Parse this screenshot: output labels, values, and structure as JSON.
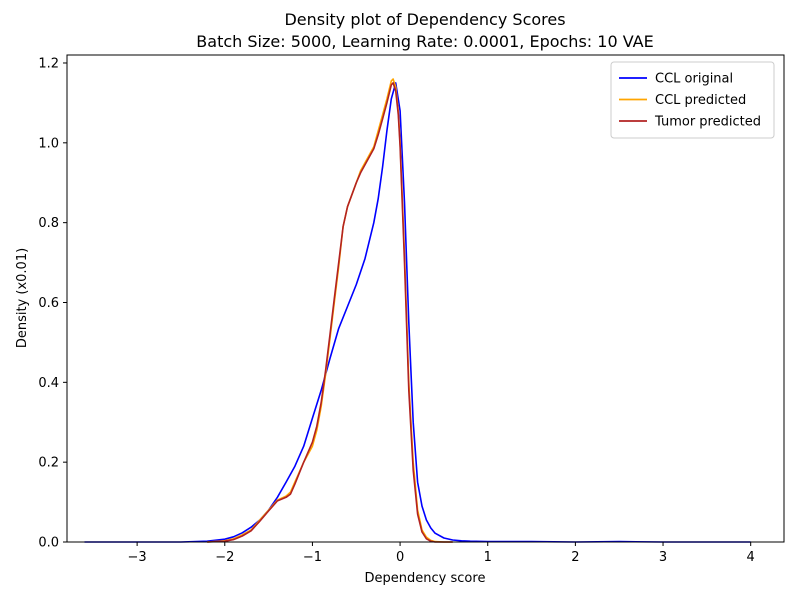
{
  "chart_data": {
    "type": "line",
    "title": "Density plot of Dependency Scores",
    "subtitle": "Batch Size: 5000, Learning Rate: 0.0001, Epochs: 10 VAE",
    "xlabel": "Dependency score",
    "ylabel": "Density (x0.01)",
    "xlim": [
      -3.8,
      4.38
    ],
    "ylim": [
      0,
      1.22
    ],
    "xticks": [
      -3,
      -2,
      -1,
      0,
      1,
      2,
      3,
      4
    ],
    "yticks": [
      0.0,
      0.2,
      0.4,
      0.6,
      0.8,
      1.0,
      1.2
    ],
    "xtick_labels": [
      "−3",
      "−2",
      "−1",
      "0",
      "1",
      "2",
      "3",
      "4"
    ],
    "ytick_labels": [
      "0.0",
      "0.2",
      "0.4",
      "0.6",
      "0.8",
      "1.0",
      "1.2"
    ],
    "grid": false,
    "legend_position": "top-right",
    "series": [
      {
        "name": "CCL original",
        "color": "#0000ff",
        "x": [
          -3.6,
          -3.0,
          -2.5,
          -2.2,
          -2.0,
          -1.9,
          -1.8,
          -1.7,
          -1.6,
          -1.5,
          -1.4,
          -1.3,
          -1.2,
          -1.1,
          -1.0,
          -0.9,
          -0.8,
          -0.7,
          -0.6,
          -0.5,
          -0.4,
          -0.3,
          -0.25,
          -0.2,
          -0.15,
          -0.1,
          -0.05,
          0.0,
          0.05,
          0.1,
          0.15,
          0.2,
          0.25,
          0.3,
          0.35,
          0.4,
          0.5,
          0.6,
          0.7,
          0.8,
          1.0,
          1.5,
          2.0,
          2.5,
          3.0,
          3.5,
          4.0
        ],
        "y": [
          0.0,
          0.0,
          0.0,
          0.002,
          0.007,
          0.013,
          0.023,
          0.037,
          0.055,
          0.08,
          0.112,
          0.15,
          0.19,
          0.24,
          0.31,
          0.38,
          0.46,
          0.535,
          0.59,
          0.645,
          0.71,
          0.8,
          0.86,
          0.94,
          1.03,
          1.11,
          1.15,
          1.08,
          0.85,
          0.55,
          0.3,
          0.15,
          0.09,
          0.055,
          0.035,
          0.022,
          0.01,
          0.005,
          0.003,
          0.002,
          0.001,
          0.001,
          0.0,
          0.001,
          0.0,
          0.0,
          0.0
        ]
      },
      {
        "name": "CCL predicted",
        "color": "#ffa500",
        "x": [
          -2.2,
          -2.0,
          -1.9,
          -1.8,
          -1.7,
          -1.6,
          -1.5,
          -1.4,
          -1.3,
          -1.25,
          -1.2,
          -1.1,
          -1.0,
          -0.95,
          -0.9,
          -0.85,
          -0.8,
          -0.75,
          -0.7,
          -0.65,
          -0.6,
          -0.55,
          -0.5,
          -0.45,
          -0.4,
          -0.35,
          -0.3,
          -0.25,
          -0.2,
          -0.15,
          -0.1,
          -0.08,
          -0.05,
          -0.02,
          0.0,
          0.05,
          0.1,
          0.15,
          0.2,
          0.25,
          0.3,
          0.35,
          0.4,
          0.5,
          0.6
        ],
        "y": [
          0.0,
          0.003,
          0.008,
          0.018,
          0.03,
          0.055,
          0.08,
          0.105,
          0.115,
          0.125,
          0.15,
          0.2,
          0.24,
          0.28,
          0.34,
          0.42,
          0.51,
          0.6,
          0.69,
          0.79,
          0.84,
          0.87,
          0.9,
          0.93,
          0.95,
          0.97,
          0.99,
          1.03,
          1.07,
          1.11,
          1.155,
          1.16,
          1.14,
          1.08,
          1.0,
          0.72,
          0.4,
          0.2,
          0.08,
          0.03,
          0.012,
          0.004,
          0.001,
          0.0,
          0.0
        ]
      },
      {
        "name": "Tumor predicted",
        "color": "#b22222",
        "x": [
          -2.2,
          -2.0,
          -1.9,
          -1.8,
          -1.7,
          -1.6,
          -1.5,
          -1.4,
          -1.3,
          -1.25,
          -1.2,
          -1.1,
          -1.0,
          -0.95,
          -0.9,
          -0.85,
          -0.8,
          -0.75,
          -0.7,
          -0.65,
          -0.6,
          -0.55,
          -0.5,
          -0.45,
          -0.4,
          -0.35,
          -0.3,
          -0.25,
          -0.2,
          -0.15,
          -0.1,
          -0.08,
          -0.05,
          -0.02,
          0.0,
          0.05,
          0.1,
          0.15,
          0.2,
          0.25,
          0.3,
          0.35,
          0.4,
          0.5,
          0.6
        ],
        "y": [
          0.0,
          0.002,
          0.006,
          0.015,
          0.028,
          0.052,
          0.078,
          0.103,
          0.112,
          0.12,
          0.145,
          0.2,
          0.25,
          0.29,
          0.35,
          0.43,
          0.52,
          0.61,
          0.7,
          0.79,
          0.84,
          0.87,
          0.9,
          0.925,
          0.945,
          0.965,
          0.985,
          1.02,
          1.06,
          1.1,
          1.145,
          1.15,
          1.13,
          1.07,
          0.99,
          0.7,
          0.38,
          0.18,
          0.07,
          0.025,
          0.008,
          0.002,
          0.0,
          0.0,
          0.0
        ]
      }
    ]
  }
}
